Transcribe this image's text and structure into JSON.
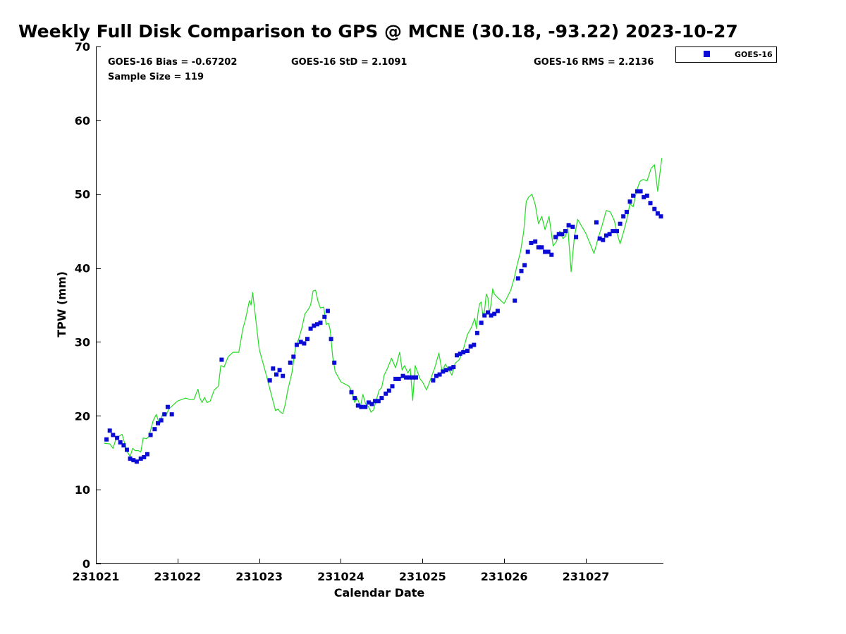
{
  "chart_data": {
    "type": "scatter",
    "title": "Weekly Full Disk Comparison to GPS @ MCNE (30.18, -93.22) 2023-10-27",
    "xlabel": "Calendar Date",
    "ylabel": "TPW (mm)",
    "xlim": [
      0,
      6.95
    ],
    "ylim": [
      0,
      70
    ],
    "x_ticks": [
      0,
      1,
      2,
      3,
      4,
      5,
      6
    ],
    "x_tick_labels": [
      "231021",
      "231022",
      "231023",
      "231024",
      "231025",
      "231026",
      "231027"
    ],
    "y_ticks": [
      0,
      10,
      20,
      30,
      40,
      50,
      60,
      70
    ],
    "y_tick_labels": [
      "0",
      "10",
      "20",
      "30",
      "40",
      "50",
      "60",
      "70"
    ],
    "stats": {
      "bias": "GOES-16 Bias = -0.67202",
      "std": "GOES-16 StD = 2.1091",
      "rms": "GOES-16 RMS = 2.2136",
      "sample": "Sample Size = 119"
    },
    "legend": {
      "label": "GOES-16",
      "position": "outside top-right"
    },
    "colors": {
      "goes": "#0b0bd6",
      "gps": "#22dd22"
    },
    "series": [
      {
        "name": "GOES-16",
        "type": "scatter",
        "color": "#0b0bd6",
        "x": [
          0.13,
          0.17,
          0.21,
          0.26,
          0.3,
          0.34,
          0.38,
          0.42,
          0.46,
          0.5,
          0.55,
          0.59,
          0.63,
          0.67,
          0.72,
          0.76,
          0.8,
          0.84,
          0.88,
          0.93,
          1.54,
          2.13,
          2.17,
          2.21,
          2.25,
          2.29,
          2.38,
          2.42,
          2.46,
          2.51,
          2.55,
          2.59,
          2.63,
          2.67,
          2.71,
          2.75,
          2.8,
          2.84,
          2.88,
          2.92,
          3.13,
          3.17,
          3.21,
          3.25,
          3.3,
          3.34,
          3.38,
          3.42,
          3.46,
          3.5,
          3.55,
          3.59,
          3.63,
          3.67,
          3.71,
          3.76,
          3.8,
          3.84,
          3.88,
          3.92,
          4.13,
          4.17,
          4.21,
          4.25,
          4.29,
          4.34,
          4.38,
          4.42,
          4.46,
          4.5,
          4.55,
          4.59,
          4.63,
          4.67,
          4.72,
          4.76,
          4.8,
          4.84,
          4.88,
          4.92,
          5.13,
          5.17,
          5.21,
          5.25,
          5.29,
          5.33,
          5.38,
          5.42,
          5.46,
          5.5,
          5.54,
          5.58,
          5.63,
          5.67,
          5.71,
          5.75,
          5.79,
          5.84,
          5.88,
          6.13,
          6.17,
          6.21,
          6.25,
          6.29,
          6.33,
          6.38,
          6.42,
          6.46,
          6.5,
          6.54,
          6.58,
          6.63,
          6.67,
          6.71,
          6.75,
          6.79,
          6.84,
          6.88,
          6.92
        ],
        "y": [
          16.8,
          18.0,
          17.4,
          17.0,
          16.4,
          16.0,
          15.4,
          14.2,
          14.0,
          13.8,
          14.2,
          14.4,
          14.8,
          17.4,
          18.2,
          19.0,
          19.4,
          20.2,
          21.2,
          20.2,
          27.6,
          24.8,
          26.4,
          25.6,
          26.2,
          25.4,
          27.2,
          28.0,
          29.6,
          30.0,
          29.8,
          30.4,
          31.8,
          32.2,
          32.4,
          32.6,
          33.4,
          34.2,
          30.4,
          27.2,
          23.2,
          22.4,
          21.4,
          21.2,
          21.2,
          21.8,
          21.6,
          22.0,
          22.0,
          22.4,
          23.0,
          23.4,
          24.0,
          25.0,
          25.0,
          25.4,
          25.2,
          25.2,
          25.2,
          25.2,
          24.8,
          25.4,
          25.6,
          26.0,
          26.2,
          26.4,
          26.6,
          28.2,
          28.4,
          28.6,
          28.8,
          29.4,
          29.6,
          31.2,
          32.6,
          33.6,
          34.0,
          33.6,
          33.8,
          34.2,
          35.6,
          38.6,
          39.6,
          40.4,
          42.2,
          43.4,
          43.6,
          42.8,
          42.8,
          42.2,
          42.2,
          41.8,
          44.2,
          44.6,
          44.6,
          45.0,
          45.8,
          45.6,
          44.2,
          46.2,
          44.0,
          43.8,
          44.4,
          44.6,
          45.0,
          45.0,
          46.0,
          47.0,
          47.6,
          49.0,
          49.8,
          50.4,
          50.4,
          49.6,
          49.8,
          48.8,
          48.0,
          47.4,
          47.0
        ]
      },
      {
        "name": "GPS",
        "type": "line",
        "color": "#22dd22",
        "x": [
          0.1,
          0.17,
          0.21,
          0.25,
          0.28,
          0.32,
          0.35,
          0.38,
          0.42,
          0.45,
          0.48,
          0.52,
          0.55,
          0.58,
          0.62,
          0.65,
          0.7,
          0.74,
          0.78,
          0.82,
          0.86,
          0.9,
          1.0,
          1.1,
          1.15,
          1.2,
          1.25,
          1.27,
          1.3,
          1.33,
          1.36,
          1.4,
          1.45,
          1.5,
          1.53,
          1.57,
          1.62,
          1.68,
          1.75,
          1.8,
          1.83,
          1.86,
          1.88,
          1.9,
          1.92,
          2.0,
          2.1,
          2.15,
          2.2,
          2.23,
          2.26,
          2.29,
          2.32,
          2.35,
          2.4,
          2.45,
          2.48,
          2.52,
          2.56,
          2.6,
          2.63,
          2.66,
          2.69,
          2.72,
          2.75,
          2.79,
          2.82,
          2.85,
          2.87,
          2.9,
          2.93,
          3.0,
          3.1,
          3.14,
          3.17,
          3.2,
          3.24,
          3.27,
          3.3,
          3.34,
          3.37,
          3.4,
          3.43,
          3.47,
          3.5,
          3.53,
          3.57,
          3.62,
          3.67,
          3.72,
          3.75,
          3.78,
          3.82,
          3.85,
          3.88,
          3.91,
          3.94,
          3.97,
          4.0,
          4.05,
          4.1,
          4.15,
          4.2,
          4.24,
          4.28,
          4.32,
          4.36,
          4.4,
          4.45,
          4.5,
          4.55,
          4.6,
          4.64,
          4.66,
          4.68,
          4.7,
          4.72,
          4.74,
          4.76,
          4.78,
          4.8,
          4.82,
          4.84,
          4.86,
          4.88,
          4.92,
          5.0,
          5.08,
          5.12,
          5.16,
          5.2,
          5.24,
          5.27,
          5.3,
          5.34,
          5.38,
          5.42,
          5.46,
          5.5,
          5.55,
          5.6,
          5.64,
          5.68,
          5.72,
          5.75,
          5.78,
          5.82,
          5.86,
          5.9,
          6.0,
          6.1,
          6.15,
          6.2,
          6.25,
          6.3,
          6.35,
          6.38,
          6.42,
          6.46,
          6.5,
          6.54,
          6.58,
          6.62,
          6.66,
          6.7,
          6.75,
          6.8,
          6.84,
          6.88,
          6.93
        ],
        "y": [
          16.3,
          16.2,
          15.6,
          17.0,
          17.2,
          17.5,
          16.4,
          15.2,
          14.5,
          15.6,
          15.3,
          15.3,
          15.1,
          17.0,
          16.9,
          17.2,
          19.3,
          20.2,
          18.8,
          20.4,
          20.1,
          21.0,
          22.0,
          22.4,
          22.2,
          22.2,
          23.6,
          22.5,
          21.8,
          22.5,
          21.8,
          22.0,
          23.5,
          24.0,
          26.8,
          26.6,
          28.0,
          28.6,
          28.6,
          31.8,
          33.0,
          34.5,
          35.6,
          35.0,
          36.7,
          29.0,
          25.0,
          22.8,
          20.7,
          20.9,
          20.5,
          20.3,
          21.6,
          23.5,
          25.8,
          29.6,
          30.3,
          31.8,
          33.8,
          34.4,
          35.0,
          36.9,
          37.0,
          35.5,
          34.6,
          34.7,
          32.4,
          32.5,
          31.6,
          28.0,
          26.0,
          24.6,
          24.0,
          23.0,
          21.8,
          22.4,
          21.3,
          22.9,
          21.7,
          21.2,
          20.5,
          20.8,
          22.0,
          23.5,
          23.8,
          25.5,
          26.4,
          27.8,
          26.5,
          28.6,
          26.2,
          26.8,
          25.8,
          26.4,
          22.1,
          26.8,
          25.9,
          25.0,
          24.6,
          23.5,
          25.0,
          26.5,
          28.5,
          26.0,
          27.0,
          26.3,
          25.5,
          27.1,
          27.6,
          29.0,
          31.0,
          32.0,
          33.2,
          31.8,
          34.0,
          35.2,
          35.4,
          33.4,
          34.2,
          36.5,
          36.0,
          33.8,
          35.2,
          37.2,
          36.5,
          36.0,
          35.2,
          37.0,
          38.5,
          40.5,
          42.2,
          45.0,
          49.0,
          49.6,
          50.0,
          48.6,
          46.0,
          47.0,
          45.2,
          47.0,
          43.0,
          43.6,
          45.0,
          44.0,
          44.3,
          45.4,
          39.5,
          44.2,
          46.6,
          44.7,
          42.0,
          44.0,
          45.8,
          47.8,
          47.6,
          46.4,
          44.8,
          43.3,
          44.8,
          46.5,
          48.7,
          48.3,
          50.4,
          51.7,
          52.0,
          51.8,
          53.5,
          54.0,
          50.4,
          54.9
        ]
      }
    ]
  }
}
